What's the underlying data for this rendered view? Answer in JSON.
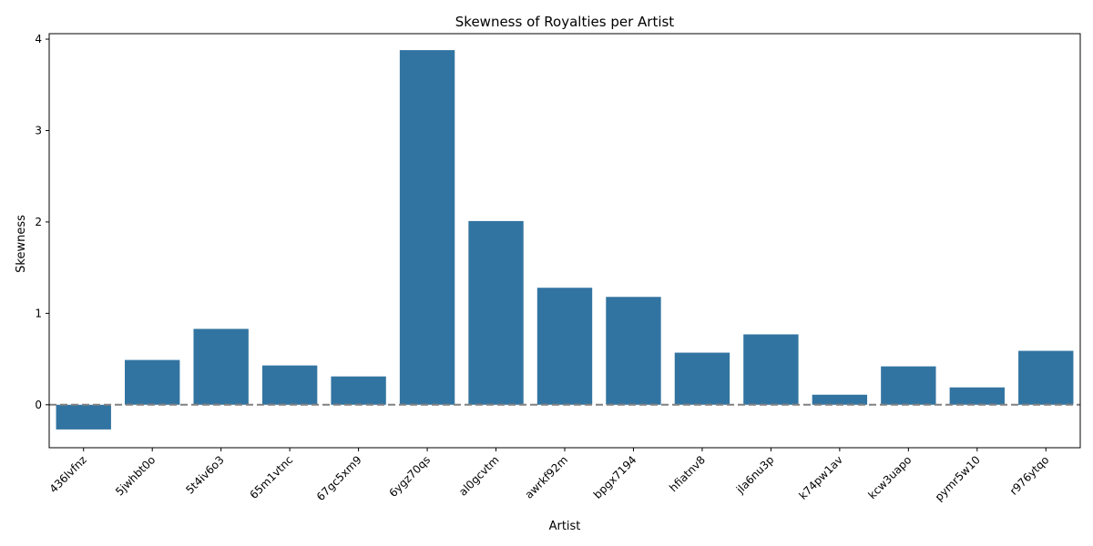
{
  "chart_data": {
    "type": "bar",
    "title": "Skewness of Royalties per Artist",
    "xlabel": "Artist",
    "ylabel": "Skewness",
    "categories": [
      "436lvfnz",
      "5jwhbt0o",
      "5t4iv6o3",
      "65m1vtnc",
      "67gc5xm9",
      "6ygz70qs",
      "al0gcvtm",
      "awrkf92m",
      "bpgx7194",
      "hfiatnv8",
      "jla6nu3p",
      "k74pw1av",
      "kcw3uapo",
      "pymr5w10",
      "r976ytqo"
    ],
    "values": [
      -0.27,
      0.49,
      0.83,
      0.43,
      0.31,
      3.88,
      2.01,
      1.28,
      1.18,
      0.57,
      0.77,
      0.11,
      0.42,
      0.19,
      0.59
    ],
    "ylim": [
      -0.47,
      4.06
    ],
    "yticks": [
      0,
      1,
      2,
      3,
      4
    ],
    "reference_line": 0,
    "grid": false,
    "bar_color": "#3274a1",
    "reference_line_color": "#808080"
  }
}
